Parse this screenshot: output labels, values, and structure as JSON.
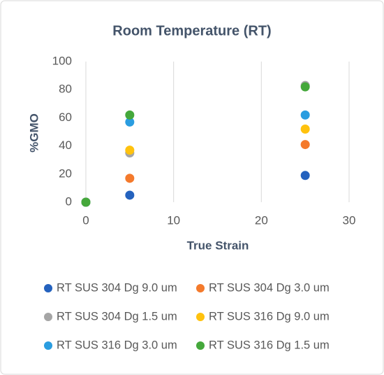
{
  "chart_data": {
    "type": "scatter",
    "title": "Room Temperature (RT)",
    "x_label": "True Strain",
    "y_label": "%GMO",
    "x": [
      0,
      5,
      25
    ],
    "series": [
      {
        "name": "RT SUS 304 Dg 9.0 um",
        "color": "#2462BE",
        "values": [
          0,
          5,
          19
        ]
      },
      {
        "name": "RT SUS 304 Dg 3.0 um",
        "color": "#F47A2C",
        "values": [
          0,
          17,
          41
        ]
      },
      {
        "name": "RT SUS 304 Dg 1.5 um",
        "color": "#A5A5A5",
        "values": [
          0,
          35,
          83
        ]
      },
      {
        "name": "RT SUS 316 Dg 9.0 um",
        "color": "#FFC20E",
        "values": [
          0,
          37,
          52
        ]
      },
      {
        "name": "RT SUS 316 Dg 3.0 um",
        "color": "#2A9DE0",
        "values": [
          0,
          57,
          62
        ]
      },
      {
        "name": "RT SUS 316 Dg 1.5 um",
        "color": "#45A83B",
        "values": [
          0,
          62,
          82
        ]
      }
    ],
    "xlim": [
      0,
      30
    ],
    "xticks": [
      0,
      10,
      20,
      30
    ],
    "ylim": [
      0,
      100
    ],
    "yticks": [
      0,
      20,
      40,
      60,
      80,
      100
    ],
    "grid": "x"
  }
}
